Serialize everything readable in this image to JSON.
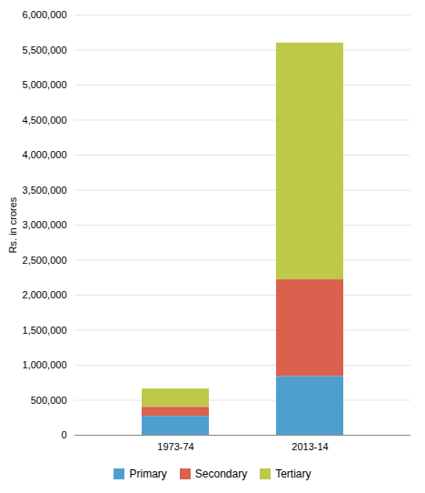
{
  "chart_data": {
    "type": "bar",
    "stacked": true,
    "categories": [
      "1973-74",
      "2013-14"
    ],
    "series": [
      {
        "name": "Primary",
        "color": "#4f9fce",
        "values": [
          270000,
          840000
        ]
      },
      {
        "name": "Secondary",
        "color": "#d9614e",
        "values": [
          130000,
          1380000
        ]
      },
      {
        "name": "Tertiary",
        "color": "#bec94a",
        "values": [
          260000,
          3380000
        ]
      }
    ],
    "ylabel": "Rs. in crores",
    "ylim": [
      0,
      6000000
    ],
    "yticks": [
      0,
      {
        "value": 500000,
        "label": "500,000"
      },
      {
        "value": 1000000,
        "label": "1,000,000"
      },
      {
        "value": 1500000,
        "label": "1,500,000"
      },
      {
        "value": 2000000,
        "label": "2,000,000"
      },
      {
        "value": 2500000,
        "label": "2,500,000"
      },
      {
        "value": 3000000,
        "label": "3,000,000"
      },
      {
        "value": 3500000,
        "label": "3,500,000"
      },
      {
        "value": 4000000,
        "label": "4,000,000"
      },
      {
        "value": 4500000,
        "label": "4,500,000"
      },
      {
        "value": 5000000,
        "label": "5,000,000"
      },
      {
        "value": 5500000,
        "label": "5,500,000"
      },
      {
        "value": 6000000,
        "label": "6,000,000"
      }
    ],
    "grid": true,
    "legend": "bottom"
  }
}
